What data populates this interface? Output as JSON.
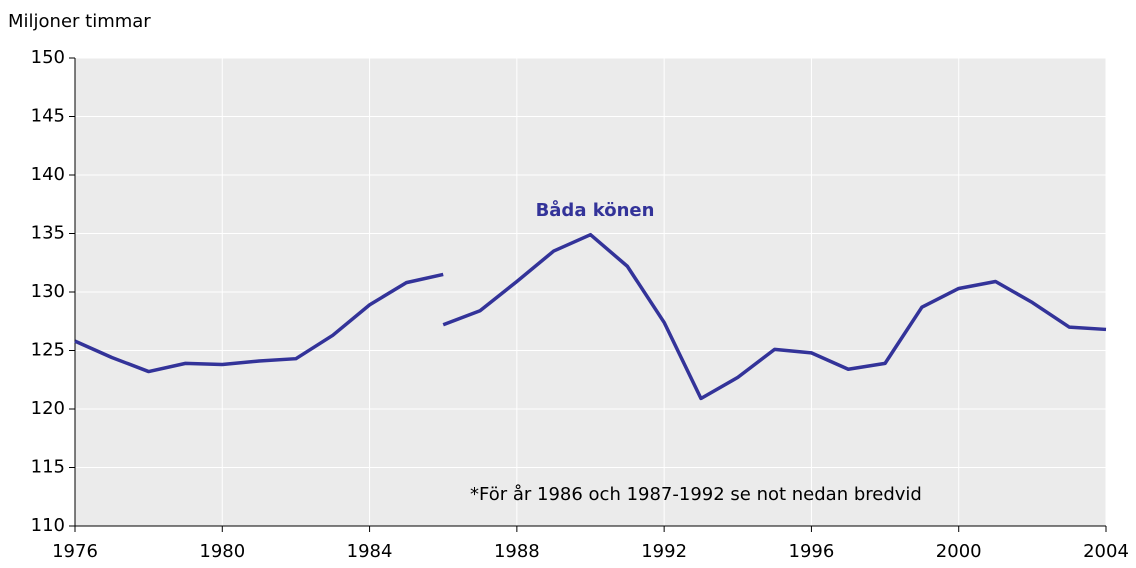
{
  "chart_data": {
    "type": "line",
    "y_axis_label": "Miljoner timmar",
    "x": [
      1976,
      1977,
      1978,
      1979,
      1980,
      1981,
      1982,
      1983,
      1984,
      1985,
      1986,
      null,
      1986,
      1987,
      1988,
      1989,
      1990,
      1991,
      1992,
      1993,
      1994,
      1995,
      1996,
      1997,
      1998,
      1999,
      2000,
      2001,
      2002,
      2003,
      2004
    ],
    "series": [
      {
        "name": "Båda könen",
        "color": "#333399",
        "values": [
          125.8,
          124.4,
          123.2,
          123.9,
          123.8,
          124.1,
          124.3,
          126.3,
          128.9,
          130.8,
          131.5,
          null,
          127.2,
          128.4,
          130.9,
          133.5,
          134.9,
          132.2,
          127.4,
          120.9,
          122.7,
          125.1,
          124.8,
          123.4,
          123.9,
          128.7,
          130.3,
          130.9,
          129.1,
          127.0,
          126.8
        ]
      }
    ],
    "annotation": "*För år 1986 och 1987-1992 se not nedan bredvid",
    "xlim": [
      1976,
      2004
    ],
    "xticks": [
      1976,
      1980,
      1984,
      1988,
      1992,
      1996,
      2000,
      2004
    ],
    "ylim": [
      110,
      150
    ],
    "yticks": [
      110,
      115,
      120,
      125,
      130,
      135,
      140,
      145,
      150
    ],
    "grid": true
  }
}
